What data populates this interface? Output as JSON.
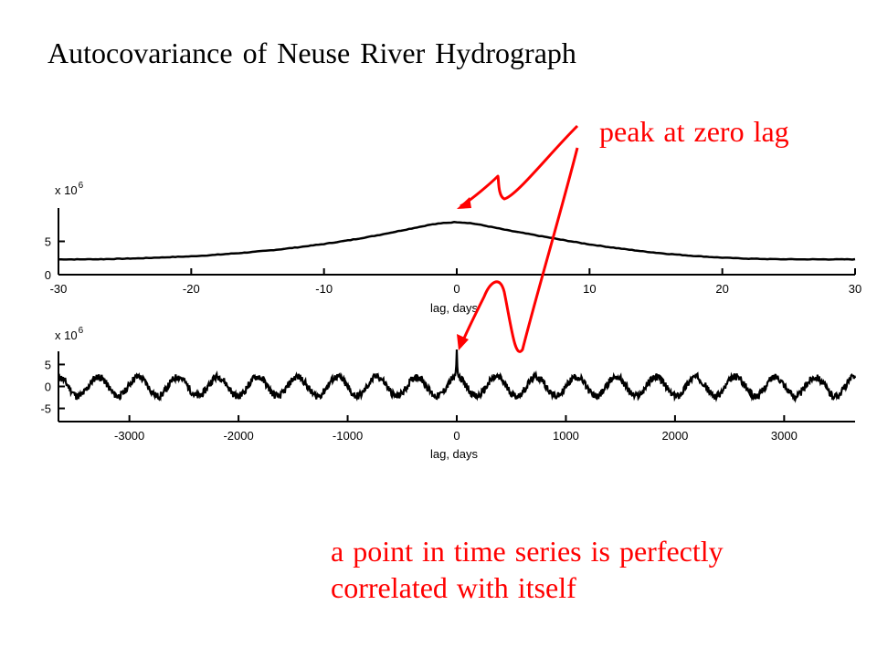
{
  "slide": {
    "title": "Autocovariance of Neuse River Hydrograph",
    "annotation_top": "peak at zero lag",
    "annotation_bottom_line1": "a point in time series is perfectly",
    "annotation_bottom_line2": "correlated with itself"
  },
  "colors": {
    "annotation": "#ff0000",
    "curve": "#000000",
    "axes": "#000000"
  },
  "chart_data": [
    {
      "type": "line",
      "xlabel": "lag, days",
      "ylabel": "",
      "y_multiplier": "x 10",
      "y_multiplier_exponent": "6",
      "xlim": [
        -30,
        30
      ],
      "ylim": [
        0,
        10
      ],
      "xticks": [
        -30,
        -20,
        -10,
        0,
        10,
        20,
        30
      ],
      "xtick_labels": [
        "-30",
        "-20",
        "-10",
        "0",
        "10",
        "20",
        "30"
      ],
      "yticks": [
        0,
        5
      ],
      "ytick_labels": [
        "0",
        "5"
      ],
      "grid": false,
      "x": [
        -30,
        -28,
        -26,
        -24,
        -22,
        -20,
        -18,
        -16,
        -14,
        -12,
        -10,
        -8,
        -6,
        -4,
        -2,
        -1,
        0,
        1,
        2,
        4,
        6,
        8,
        10,
        12,
        14,
        16,
        18,
        20,
        22,
        24,
        26,
        28,
        30
      ],
      "values": [
        2.3,
        2.3,
        2.35,
        2.45,
        2.6,
        2.75,
        3.0,
        3.3,
        3.65,
        4.1,
        4.6,
        5.2,
        5.9,
        6.7,
        7.5,
        7.75,
        7.9,
        7.75,
        7.4,
        6.6,
        5.9,
        5.2,
        4.55,
        4.0,
        3.5,
        3.1,
        2.8,
        2.55,
        2.4,
        2.32,
        2.3,
        2.3,
        2.3
      ]
    },
    {
      "type": "line",
      "xlabel": "lag, days",
      "ylabel": "",
      "y_multiplier": "x 10",
      "y_multiplier_exponent": "6",
      "xlim": [
        -3650,
        3650
      ],
      "ylim": [
        -8,
        8
      ],
      "xticks": [
        -3000,
        -2000,
        -1000,
        0,
        1000,
        2000,
        3000
      ],
      "xtick_labels": [
        "-3000",
        "-2000",
        "-1000",
        "0",
        "1000",
        "2000",
        "3000"
      ],
      "yticks": [
        -5,
        0,
        5
      ],
      "ytick_labels": [
        "-5",
        "0",
        "5"
      ],
      "grid": false,
      "series": [
        {
          "description_values": "seasonal oscillation, period ~365 days, amplitude ~2.2, spike ~7.8 at lag 0"
        }
      ],
      "period_days": 365,
      "amplitude": 2.2,
      "peak_at_zero": 7.8
    }
  ]
}
